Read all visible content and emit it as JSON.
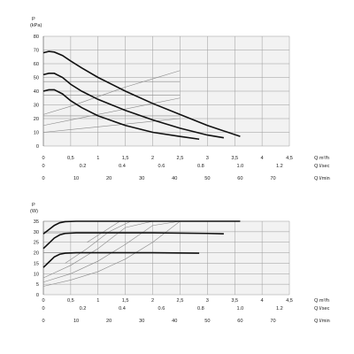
{
  "chart_data": [
    {
      "type": "line",
      "ylabel_symbol": "P",
      "ylabel_unit": "(kPa)",
      "ylim": [
        0,
        80
      ],
      "yticks": [
        "0",
        "10",
        "20",
        "30",
        "40",
        "50",
        "60",
        "70",
        "80"
      ],
      "grid": true,
      "x_axes": [
        {
          "ticks": [
            "0",
            "0,5",
            "1",
            "1,5",
            "2",
            "2,5",
            "3",
            "3,5",
            "4",
            "4,5"
          ],
          "label": "Q m³/h",
          "range": [
            0,
            4.5
          ]
        },
        {
          "ticks": [
            "0",
            "0.2",
            "0.4",
            "0.6",
            "0.8",
            "1.0",
            "1.2"
          ],
          "label": "Q l/sec",
          "range": [
            0,
            1.25
          ]
        },
        {
          "ticks": [
            "0",
            "10",
            "20",
            "30",
            "40",
            "50",
            "60",
            "70"
          ],
          "label": "Q l/min",
          "range": [
            0,
            75
          ]
        }
      ],
      "series": [
        {
          "x": [
            0,
            0.1,
            0.2,
            0.35,
            0.5,
            0.7,
            1.0,
            1.5,
            2.0,
            2.5,
            3.0,
            3.6
          ],
          "y": [
            68,
            69,
            68.5,
            66,
            62,
            57,
            50,
            40,
            31,
            23,
            15,
            7
          ]
        },
        {
          "x": [
            0,
            0.1,
            0.2,
            0.35,
            0.5,
            0.7,
            1.0,
            1.5,
            2.0,
            2.5,
            3.0,
            3.3
          ],
          "y": [
            52,
            53,
            53,
            50,
            45,
            40,
            34,
            26,
            19,
            13,
            8,
            6
          ]
        },
        {
          "x": [
            0,
            0.1,
            0.2,
            0.35,
            0.5,
            0.7,
            1.0,
            1.5,
            2.0,
            2.5,
            2.85
          ],
          "y": [
            40,
            41,
            41,
            38,
            33,
            28,
            22,
            15,
            10,
            7,
            5
          ]
        }
      ],
      "system_curves": [
        {
          "x": [
            0,
            0.5,
            1.0,
            1.5,
            2.0,
            2.5
          ],
          "y": [
            10,
            12,
            14,
            16,
            18,
            20
          ]
        },
        {
          "x": [
            0,
            0.5,
            1.0,
            1.5,
            2.0,
            2.5
          ],
          "y": [
            15,
            19,
            23,
            27,
            31,
            35
          ]
        },
        {
          "x": [
            0,
            0.5,
            1.0,
            1.5,
            2.0,
            2.5
          ],
          "y": [
            23,
            29,
            36,
            43,
            49,
            55
          ]
        }
      ],
      "reference_lines_y": [
        47,
        37,
        22
      ]
    },
    {
      "type": "line",
      "ylabel_symbol": "P",
      "ylabel_unit": "(W)",
      "ylim": [
        0,
        35
      ],
      "yticks": [
        "0",
        "5",
        "10",
        "15",
        "20",
        "25",
        "30",
        "35"
      ],
      "grid": true,
      "x_axes": [
        {
          "ticks": [
            "0",
            "0,5",
            "1",
            "1,5",
            "2",
            "2,5",
            "3",
            "3,5",
            "4",
            "4,5"
          ],
          "label": "Q m³/h",
          "range": [
            0,
            4.5
          ]
        },
        {
          "ticks": [
            "0",
            "0.2",
            "0.4",
            "0.6",
            "0.8",
            "1.0",
            "1.2"
          ],
          "label": "Q l/sec",
          "range": [
            0,
            1.25
          ]
        },
        {
          "ticks": [
            "0",
            "10",
            "20",
            "30",
            "40",
            "50",
            "60",
            "70"
          ],
          "label": "Q l/min",
          "range": [
            0,
            75
          ]
        }
      ],
      "series": [
        {
          "x": [
            0,
            0.1,
            0.2,
            0.3,
            0.4,
            0.6,
            1.0,
            2.0,
            3.0,
            3.6
          ],
          "y": [
            29,
            31,
            33,
            34.3,
            34.8,
            35,
            35,
            35,
            35,
            35
          ]
        },
        {
          "x": [
            0,
            0.1,
            0.2,
            0.3,
            0.4,
            0.6,
            1.0,
            2.0,
            3.0,
            3.3
          ],
          "y": [
            22,
            24.5,
            27,
            28.5,
            29.2,
            29.5,
            29.5,
            29.5,
            29.2,
            29
          ]
        },
        {
          "x": [
            0,
            0.1,
            0.2,
            0.3,
            0.4,
            0.6,
            1.0,
            2.0,
            2.85
          ],
          "y": [
            13,
            15.5,
            18,
            19.3,
            19.8,
            20,
            20,
            20,
            19.8
          ]
        }
      ],
      "system_curves": [
        {
          "x": [
            0,
            0.5,
            1.0,
            1.5,
            2.0,
            2.5
          ],
          "y": [
            4,
            7,
            11,
            17,
            25,
            35
          ]
        },
        {
          "x": [
            0,
            0.5,
            1.0,
            1.5,
            2.0,
            2.5
          ],
          "y": [
            6,
            10,
            16,
            24,
            33,
            35
          ]
        },
        {
          "x": [
            0,
            0.5,
            1.0,
            1.5,
            2.0
          ],
          "y": [
            8,
            14,
            22,
            32,
            35
          ]
        },
        {
          "x": [
            0.4,
            0.8,
            1.2,
            1.6
          ],
          "y": [
            15,
            22,
            30,
            35
          ]
        },
        {
          "x": [
            0.8,
            1.1,
            1.4
          ],
          "y": [
            25,
            30,
            35
          ]
        }
      ],
      "reference_lines_y": [
        35,
        29.5,
        20
      ]
    }
  ]
}
